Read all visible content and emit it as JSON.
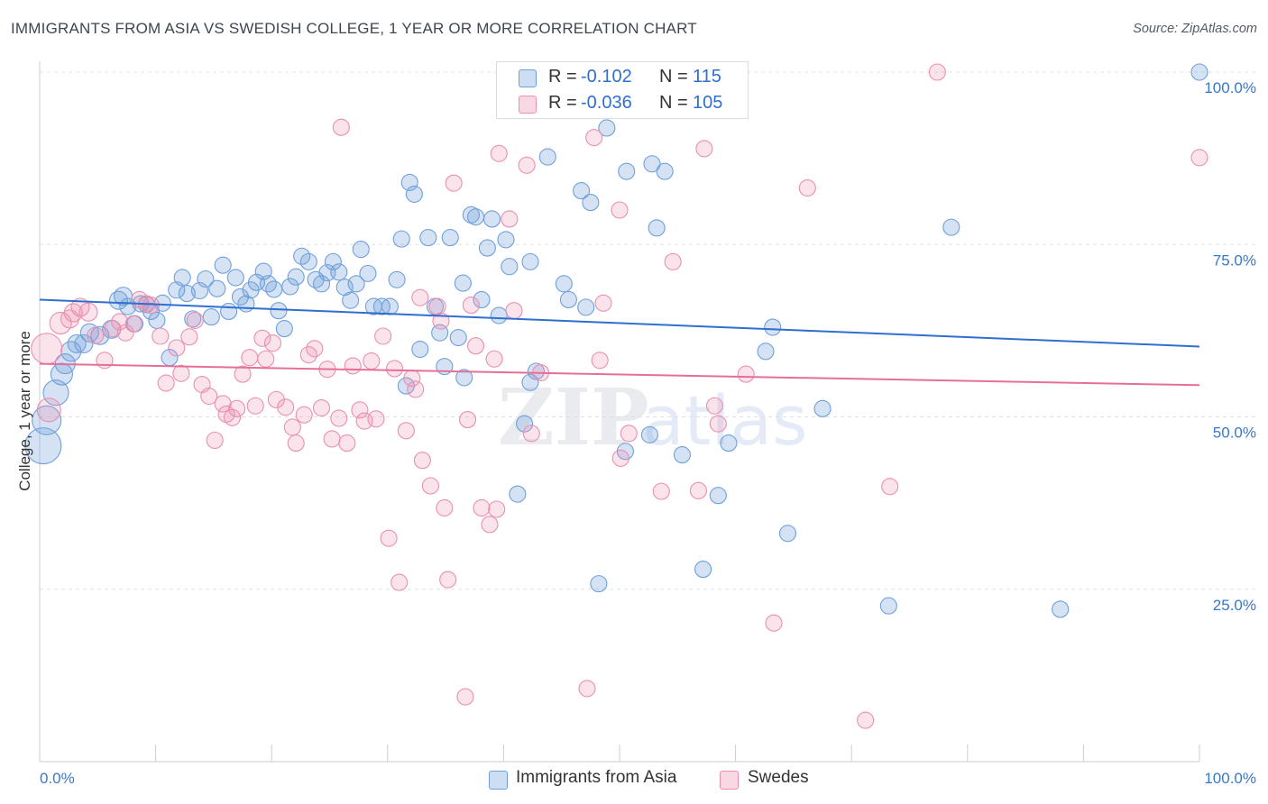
{
  "title": "IMMIGRANTS FROM ASIA VS SWEDISH COLLEGE, 1 YEAR OR MORE CORRELATION CHART",
  "source": "Source: ZipAtlas.com",
  "watermark": {
    "zip": "ZIP",
    "atlas": "atlas"
  },
  "colors": {
    "blue": "#6fa0db",
    "blue_fill": "rgba(111,160,219,0.30)",
    "blue_line": "#2e6fd0",
    "pink": "#ea8fb0",
    "pink_fill": "rgba(234,143,176,0.25)",
    "pink_line": "#e66f9a",
    "axis_text": "#3a78c9",
    "grid": "#dde2e8"
  },
  "legend_top": {
    "rows": [
      {
        "r_label": "R =",
        "r_value": "-0.102",
        "n_label": "N =",
        "n_value": "115",
        "color": "#6fa0db"
      },
      {
        "r_label": "R =",
        "r_value": "-0.036",
        "n_label": "N =",
        "n_value": "105",
        "color": "#ea8fb0"
      }
    ]
  },
  "legend_bottom": [
    {
      "label": "Immigrants from Asia",
      "color": "#6fa0db"
    },
    {
      "label": "Swedes",
      "color": "#ea8fb0"
    }
  ],
  "chart_data": {
    "type": "scatter",
    "title": "IMMIGRANTS FROM ASIA VS SWEDISH COLLEGE, 1 YEAR OR MORE CORRELATION CHART",
    "xlabel": "",
    "ylabel": "College, 1 year or more",
    "xlim": [
      0,
      100
    ],
    "ylim": [
      0,
      100
    ],
    "x_tick_labels": [
      "0.0%",
      "100.0%"
    ],
    "y_tick_labels": [
      "25.0%",
      "50.0%",
      "75.0%",
      "100.0%"
    ],
    "y_ticks": [
      25,
      50,
      75,
      100
    ],
    "grid": "horizontal dashed",
    "legend": "top-center",
    "series": [
      {
        "name": "Immigrants from Asia",
        "color": "#6fa0db",
        "trend": {
          "x": [
            0,
            100
          ],
          "y": [
            67.0,
            60.2
          ]
        },
        "points": [
          [
            0.3,
            45.8,
            20
          ],
          [
            0.6,
            49.5,
            16
          ],
          [
            1.4,
            53.5,
            14
          ],
          [
            1.9,
            56.2,
            12
          ],
          [
            2.2,
            57.7,
            11
          ],
          [
            2.7,
            59.5,
            11
          ],
          [
            3.2,
            60.6,
            10
          ],
          [
            3.8,
            60.6,
            10
          ],
          [
            4.3,
            62.2,
            10
          ],
          [
            5.2,
            61.8,
            10
          ],
          [
            6.2,
            62.7,
            10
          ],
          [
            6.8,
            66.9,
            10
          ],
          [
            7.2,
            67.5,
            10
          ],
          [
            7.6,
            66.0,
            9
          ],
          [
            8.2,
            63.5,
            9
          ],
          [
            8.7,
            66.4,
            9
          ],
          [
            9.2,
            66.3,
            9
          ],
          [
            9.6,
            65.3,
            9
          ],
          [
            10.1,
            64.0,
            9
          ],
          [
            10.6,
            66.5,
            9
          ],
          [
            11.2,
            58.6,
            9
          ],
          [
            11.8,
            68.4,
            9
          ],
          [
            12.3,
            70.2,
            9
          ],
          [
            12.7,
            67.9,
            9
          ],
          [
            13.2,
            64.2,
            9
          ],
          [
            13.8,
            68.3,
            9
          ],
          [
            14.3,
            70.0,
            9
          ],
          [
            14.8,
            64.5,
            9
          ],
          [
            15.3,
            68.6,
            9
          ],
          [
            15.8,
            72.0,
            9
          ],
          [
            16.3,
            65.3,
            9
          ],
          [
            16.9,
            70.2,
            9
          ],
          [
            17.3,
            67.4,
            9
          ],
          [
            17.8,
            66.4,
            9
          ],
          [
            18.2,
            68.4,
            9
          ],
          [
            18.7,
            69.5,
            9
          ],
          [
            19.3,
            71.1,
            9
          ],
          [
            19.7,
            69.3,
            9
          ],
          [
            20.2,
            68.5,
            9
          ],
          [
            20.6,
            65.4,
            9
          ],
          [
            21.1,
            62.8,
            9
          ],
          [
            21.6,
            68.9,
            9
          ],
          [
            22.1,
            70.3,
            9
          ],
          [
            22.6,
            73.3,
            9
          ],
          [
            23.2,
            72.5,
            9
          ],
          [
            23.8,
            69.9,
            9
          ],
          [
            24.3,
            69.3,
            9
          ],
          [
            24.8,
            70.9,
            9
          ],
          [
            25.3,
            72.5,
            9
          ],
          [
            25.8,
            71.0,
            9
          ],
          [
            26.3,
            68.8,
            9
          ],
          [
            26.8,
            66.9,
            9
          ],
          [
            27.3,
            69.3,
            9
          ],
          [
            27.7,
            74.3,
            9
          ],
          [
            28.3,
            70.8,
            9
          ],
          [
            28.8,
            66.0,
            9
          ],
          [
            29.5,
            66.0,
            9
          ],
          [
            30.2,
            66.0,
            9
          ],
          [
            30.8,
            69.9,
            9
          ],
          [
            31.2,
            75.8,
            9
          ],
          [
            31.6,
            54.5,
            9
          ],
          [
            31.9,
            84.0,
            9
          ],
          [
            32.3,
            82.3,
            9
          ],
          [
            32.8,
            59.8,
            9
          ],
          [
            33.5,
            76.0,
            9
          ],
          [
            34.1,
            66.0,
            9
          ],
          [
            34.5,
            62.2,
            9
          ],
          [
            34.9,
            57.3,
            9
          ],
          [
            35.4,
            76.0,
            9
          ],
          [
            36.1,
            61.5,
            9
          ],
          [
            36.6,
            55.7,
            9
          ],
          [
            36.5,
            69.4,
            9
          ],
          [
            37.2,
            79.3,
            9
          ],
          [
            37.6,
            79.0,
            9
          ],
          [
            38.1,
            67.0,
            9
          ],
          [
            38.6,
            74.5,
            9
          ],
          [
            39.0,
            78.7,
            9
          ],
          [
            39.6,
            64.7,
            9
          ],
          [
            40.2,
            75.7,
            9
          ],
          [
            40.5,
            71.8,
            9
          ],
          [
            41.2,
            38.8,
            9
          ],
          [
            41.8,
            49.0,
            9
          ],
          [
            42.3,
            55.0,
            9
          ],
          [
            42.8,
            56.6,
            9
          ],
          [
            42.3,
            72.5,
            9
          ],
          [
            43.8,
            87.7,
            9
          ],
          [
            45.2,
            69.3,
            9
          ],
          [
            45.6,
            67.0,
            9
          ],
          [
            46.7,
            82.8,
            9
          ],
          [
            47.1,
            65.9,
            9
          ],
          [
            47.5,
            81.1,
            9
          ],
          [
            48.2,
            25.8,
            9
          ],
          [
            48.9,
            91.9,
            9
          ],
          [
            50.5,
            45.0,
            9
          ],
          [
            50.6,
            85.6,
            9
          ],
          [
            52.6,
            47.4,
            9
          ],
          [
            52.8,
            86.7,
            9
          ],
          [
            53.2,
            77.4,
            9
          ],
          [
            53.9,
            85.6,
            9
          ],
          [
            55.4,
            44.5,
            9
          ],
          [
            57.2,
            27.9,
            9
          ],
          [
            58.5,
            38.6,
            9
          ],
          [
            59.4,
            46.2,
            9
          ],
          [
            62.6,
            59.5,
            9
          ],
          [
            63.2,
            63.0,
            9
          ],
          [
            64.5,
            33.1,
            9
          ],
          [
            67.5,
            51.2,
            9
          ],
          [
            73.2,
            22.6,
            9
          ],
          [
            78.6,
            77.5,
            9
          ],
          [
            88.0,
            22.1,
            9
          ],
          [
            100.0,
            100.0,
            9
          ]
        ]
      },
      {
        "name": "Swedes",
        "color": "#ea8fb0",
        "trend": {
          "x": [
            0,
            100
          ],
          "y": [
            57.7,
            54.6
          ]
        },
        "points": [
          [
            0.6,
            59.9,
            17
          ],
          [
            0.8,
            51.0,
            13
          ],
          [
            1.8,
            63.6,
            12
          ],
          [
            2.6,
            64.2,
            10
          ],
          [
            2.9,
            65.1,
            10
          ],
          [
            3.5,
            65.9,
            10
          ],
          [
            4.2,
            65.2,
            10
          ],
          [
            4.8,
            61.8,
            9
          ],
          [
            5.6,
            58.2,
            9
          ],
          [
            6.3,
            62.8,
            9
          ],
          [
            6.9,
            63.8,
            9
          ],
          [
            7.4,
            62.2,
            9
          ],
          [
            8.1,
            63.5,
            9
          ],
          [
            8.6,
            67.0,
            9
          ],
          [
            9.2,
            66.4,
            9
          ],
          [
            9.6,
            66.2,
            9
          ],
          [
            10.4,
            61.7,
            9
          ],
          [
            10.9,
            54.9,
            9
          ],
          [
            11.8,
            60.0,
            9
          ],
          [
            12.2,
            56.3,
            9
          ],
          [
            12.9,
            61.6,
            9
          ],
          [
            13.4,
            64.0,
            9
          ],
          [
            14.0,
            54.7,
            9
          ],
          [
            14.6,
            53.0,
            9
          ],
          [
            15.1,
            46.6,
            9
          ],
          [
            15.8,
            51.9,
            9
          ],
          [
            16.1,
            50.4,
            9
          ],
          [
            16.6,
            49.9,
            9
          ],
          [
            17.0,
            51.2,
            9
          ],
          [
            17.5,
            56.2,
            9
          ],
          [
            18.1,
            58.6,
            9
          ],
          [
            18.6,
            51.6,
            9
          ],
          [
            19.2,
            61.4,
            9
          ],
          [
            19.5,
            58.4,
            9
          ],
          [
            20.1,
            60.7,
            9
          ],
          [
            20.4,
            52.5,
            9
          ],
          [
            21.2,
            51.4,
            9
          ],
          [
            21.8,
            48.5,
            9
          ],
          [
            22.1,
            46.2,
            9
          ],
          [
            22.8,
            50.3,
            9
          ],
          [
            23.2,
            59.0,
            9
          ],
          [
            23.7,
            59.9,
            9
          ],
          [
            24.3,
            51.3,
            9
          ],
          [
            24.8,
            56.9,
            9
          ],
          [
            25.2,
            46.8,
            9
          ],
          [
            25.8,
            49.8,
            9
          ],
          [
            26.0,
            92.0,
            9
          ],
          [
            26.5,
            46.2,
            9
          ],
          [
            27.0,
            57.4,
            9
          ],
          [
            27.6,
            51.0,
            9
          ],
          [
            28.0,
            49.4,
            9
          ],
          [
            28.6,
            58.1,
            9
          ],
          [
            29.0,
            49.7,
            9
          ],
          [
            29.6,
            61.7,
            9
          ],
          [
            30.1,
            32.4,
            9
          ],
          [
            30.6,
            57.0,
            9
          ],
          [
            31.0,
            26.0,
            9
          ],
          [
            31.6,
            48.0,
            9
          ],
          [
            32.1,
            55.6,
            9
          ],
          [
            32.4,
            54.0,
            9
          ],
          [
            32.8,
            67.3,
            9
          ],
          [
            33.0,
            43.7,
            9
          ],
          [
            33.7,
            40.0,
            9
          ],
          [
            34.3,
            66.0,
            9
          ],
          [
            34.6,
            63.9,
            9
          ],
          [
            34.9,
            36.8,
            9
          ],
          [
            35.2,
            26.4,
            9
          ],
          [
            35.7,
            83.9,
            9
          ],
          [
            36.7,
            9.4,
            9
          ],
          [
            36.9,
            49.6,
            9
          ],
          [
            37.2,
            66.2,
            9
          ],
          [
            37.6,
            60.3,
            9
          ],
          [
            38.1,
            36.8,
            9
          ],
          [
            38.8,
            34.4,
            9
          ],
          [
            39.4,
            36.6,
            9
          ],
          [
            39.6,
            88.2,
            9
          ],
          [
            39.2,
            58.4,
            9
          ],
          [
            40.5,
            78.7,
            9
          ],
          [
            40.9,
            65.4,
            9
          ],
          [
            42.0,
            86.5,
            9
          ],
          [
            42.4,
            47.6,
            9
          ],
          [
            43.2,
            56.4,
            9
          ],
          [
            46.8,
            100.0,
            9
          ],
          [
            47.2,
            10.6,
            9
          ],
          [
            47.8,
            90.5,
            9
          ],
          [
            48.3,
            58.2,
            9
          ],
          [
            48.6,
            66.5,
            9
          ],
          [
            50.1,
            44.0,
            9
          ],
          [
            50.0,
            80.0,
            9
          ],
          [
            50.8,
            47.6,
            9
          ],
          [
            53.6,
            39.2,
            9
          ],
          [
            54.6,
            72.5,
            9
          ],
          [
            56.8,
            39.3,
            9
          ],
          [
            57.3,
            88.9,
            9
          ],
          [
            58.2,
            51.6,
            9
          ],
          [
            58.5,
            49.0,
            9
          ],
          [
            60.9,
            56.2,
            9
          ],
          [
            63.3,
            20.1,
            9
          ],
          [
            66.2,
            83.2,
            9
          ],
          [
            71.2,
            6.0,
            9
          ],
          [
            73.3,
            39.9,
            9
          ],
          [
            77.4,
            100.0,
            9
          ],
          [
            100.0,
            87.6,
            9
          ]
        ]
      }
    ]
  }
}
